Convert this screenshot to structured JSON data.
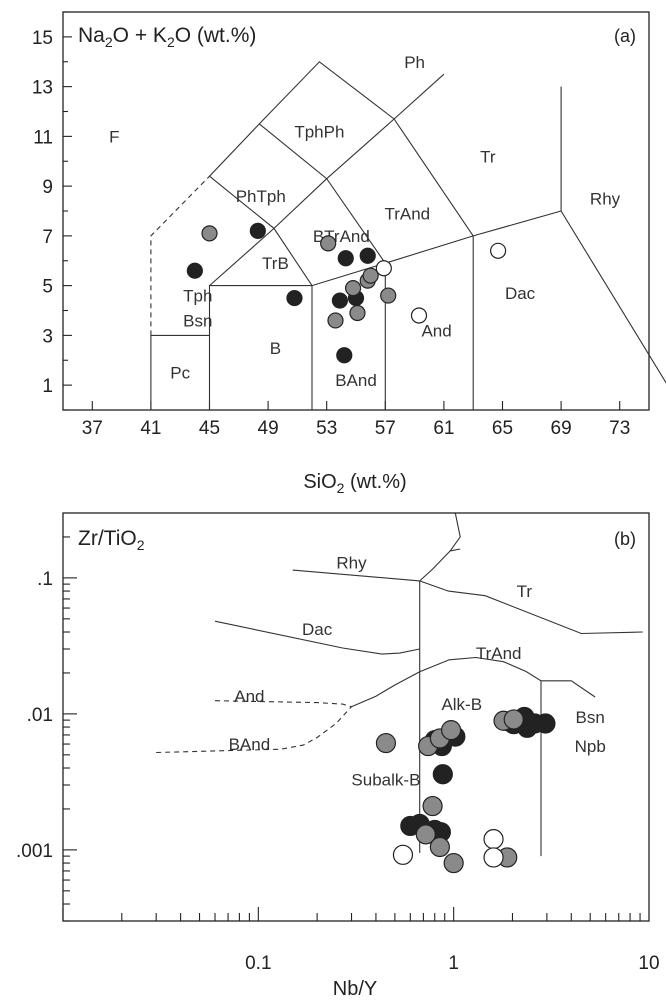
{
  "colors": {
    "black": "#222222",
    "grey": "#8a8a8a",
    "white": "#ffffff"
  },
  "chart_data": [
    {
      "type": "scatter",
      "title": "Na2O + K2O (wt.%)",
      "panel": "(a)",
      "xlabel": "SiO2 (wt.%)",
      "ylabel": "Na2O + K2O (wt.%)",
      "xlim": [
        35,
        75
      ],
      "ylim": [
        0,
        16
      ],
      "xticks": [
        37,
        41,
        45,
        49,
        53,
        57,
        61,
        65,
        69,
        73
      ],
      "yticks": [
        1,
        3,
        5,
        7,
        9,
        11,
        13,
        15
      ],
      "regions": [
        {
          "label": "F",
          "x": 38.5,
          "y": 11
        },
        {
          "label": "Ph",
          "x": 59,
          "y": 14
        },
        {
          "label": "TphPh",
          "x": 52.5,
          "y": 11.2
        },
        {
          "label": "PhTph",
          "x": 48.5,
          "y": 8.6
        },
        {
          "label": "Tr",
          "x": 64,
          "y": 10.2
        },
        {
          "label": "Rhy",
          "x": 72,
          "y": 8.5
        },
        {
          "label": "TrAnd",
          "x": 58.5,
          "y": 7.9
        },
        {
          "label": "BTrAnd",
          "x": 54,
          "y": 7
        },
        {
          "label": "TrB",
          "x": 49.5,
          "y": 5.9
        },
        {
          "label": "Tph",
          "x": 44.2,
          "y": 4.6
        },
        {
          "label": "Bsn",
          "x": 44.2,
          "y": 3.6
        },
        {
          "label": "B",
          "x": 49.5,
          "y": 2.5
        },
        {
          "label": "Pc",
          "x": 43,
          "y": 1.5
        },
        {
          "label": "BAnd",
          "x": 55,
          "y": 1.2
        },
        {
          "label": "And",
          "x": 60.5,
          "y": 3.2
        },
        {
          "label": "Dac",
          "x": 66.2,
          "y": 4.7
        }
      ],
      "series": [
        {
          "marker": "black",
          "points": [
            [
              44,
              5.6
            ],
            [
              48.3,
              7.2
            ],
            [
              50.8,
              4.5
            ],
            [
              53.9,
              4.4
            ],
            [
              54.3,
              6.1
            ],
            [
              55,
              4.5
            ],
            [
              55.8,
              6.2
            ],
            [
              54.2,
              2.2
            ]
          ]
        },
        {
          "marker": "grey",
          "points": [
            [
              45,
              7.1
            ],
            [
              53.1,
              6.7
            ],
            [
              54.8,
              4.9
            ],
            [
              55.8,
              5.2
            ],
            [
              56,
              5.4
            ],
            [
              55.1,
              3.9
            ],
            [
              53.6,
              3.6
            ],
            [
              57.2,
              4.6
            ]
          ]
        },
        {
          "marker": "white",
          "points": [
            [
              56.9,
              5.7
            ],
            [
              59.3,
              3.8
            ],
            [
              64.7,
              6.4
            ]
          ]
        }
      ]
    },
    {
      "type": "scatter",
      "title": "Zr/TiO2",
      "panel": "(b)",
      "xlabel": "Nb/Y",
      "ylabel": "Zr/TiO2",
      "xscale": "log",
      "yscale": "log",
      "xlim": [
        0.01,
        10
      ],
      "ylim": [
        0.0003,
        0.3
      ],
      "xticklabels": [
        {
          "v": 0.1,
          "t": "0.1"
        },
        {
          "v": 1,
          "t": "1"
        },
        {
          "v": 10,
          "t": "10"
        }
      ],
      "yticklabels": [
        {
          "v": 0.1,
          "t": ".1"
        },
        {
          "v": 0.01,
          "t": ".01"
        },
        {
          "v": 0.001,
          "t": ".001"
        }
      ],
      "regions": [
        {
          "label": "Rhy",
          "x": 0.3,
          "y": 0.13
        },
        {
          "label": "Tr",
          "x": 2.3,
          "y": 0.08
        },
        {
          "label": "Dac",
          "x": 0.2,
          "y": 0.042
        },
        {
          "label": "TrAnd",
          "x": 1.7,
          "y": 0.028
        },
        {
          "label": "And",
          "x": 0.09,
          "y": 0.0135
        },
        {
          "label": "Alk-B",
          "x": 1.1,
          "y": 0.0118
        },
        {
          "label": "Bsn",
          "x": 5,
          "y": 0.0095
        },
        {
          "label": "Npb",
          "x": 5,
          "y": 0.0058
        },
        {
          "label": "BAnd",
          "x": 0.09,
          "y": 0.006
        },
        {
          "label": "Subalk-B",
          "x": 0.45,
          "y": 0.0033
        }
      ],
      "series": [
        {
          "marker": "black",
          "points": [
            [
              0.8,
              0.0064
            ],
            [
              0.87,
              0.0058
            ],
            [
              1.02,
              0.0068
            ],
            [
              0.88,
              0.0036
            ],
            [
              0.6,
              0.0015
            ],
            [
              0.67,
              0.00155
            ],
            [
              0.8,
              0.0014
            ],
            [
              0.86,
              0.00135
            ],
            [
              1.92,
              0.0088
            ],
            [
              2.03,
              0.0084
            ],
            [
              2.22,
              0.0088
            ],
            [
              2.3,
              0.0095
            ],
            [
              2.38,
              0.0079
            ],
            [
              2.6,
              0.0085
            ],
            [
              2.95,
              0.0085
            ]
          ]
        },
        {
          "marker": "grey",
          "points": [
            [
              0.45,
              0.0061
            ],
            [
              0.74,
              0.0058
            ],
            [
              0.85,
              0.0066
            ],
            [
              0.97,
              0.0076
            ],
            [
              0.78,
              0.0021
            ],
            [
              0.72,
              0.0013
            ],
            [
              0.85,
              0.00105
            ],
            [
              1,
              0.0008
            ],
            [
              1.88,
              0.00088
            ],
            [
              1.8,
              0.0089
            ],
            [
              2.03,
              0.0091
            ]
          ]
        },
        {
          "marker": "white",
          "points": [
            [
              0.55,
              0.00092
            ],
            [
              1.6,
              0.0012
            ],
            [
              1.6,
              0.00088
            ]
          ]
        }
      ]
    }
  ]
}
